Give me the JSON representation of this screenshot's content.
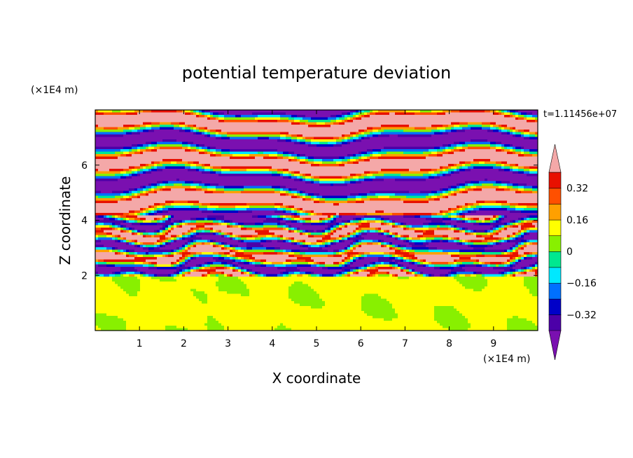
{
  "chart_data": {
    "type": "heatmap",
    "title": "potential temperature deviation",
    "xlabel": "X coordinate",
    "ylabel": "Z coordinate",
    "x_unit": "(×1E4 m)",
    "y_unit": "(×1E4 m)",
    "time_label": "t=1.11456e+07",
    "xlim": [
      0,
      10
    ],
    "ylim": [
      0,
      8
    ],
    "x_ticks": [
      "1",
      "2",
      "3",
      "4",
      "5",
      "6",
      "7",
      "8",
      "9"
    ],
    "y_ticks": [
      "2",
      "4",
      "6"
    ],
    "colorbar": {
      "levels": [
        -0.4,
        -0.32,
        -0.24,
        -0.16,
        -0.08,
        0,
        0.08,
        0.16,
        0.24,
        0.32,
        0.4
      ],
      "labels": [
        "0.32",
        "0.16",
        "0",
        "−0.16",
        "−0.32"
      ],
      "label_values": [
        0.32,
        0.16,
        0,
        -0.16,
        -0.32
      ],
      "colors": [
        "#7a10b0",
        "#4c00a8",
        "#0000c8",
        "#0070ff",
        "#00e8ff",
        "#00e890",
        "#88f000",
        "#ffff00",
        "#ffa000",
        "#ff5000",
        "#e81000",
        "#f4a8a8"
      ],
      "extend": "both"
    },
    "grid": false
  }
}
